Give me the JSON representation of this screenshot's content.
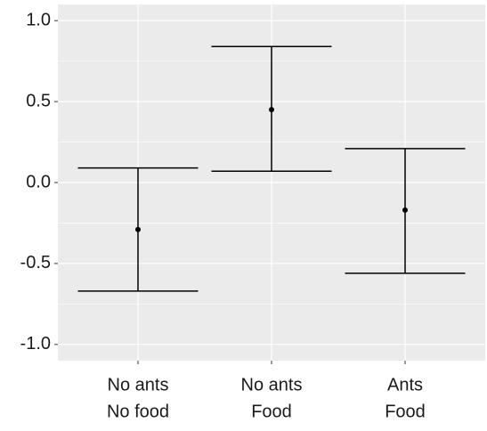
{
  "chart_data": {
    "type": "errorbar",
    "categories": [
      [
        "No ants",
        "No food"
      ],
      [
        "No ants",
        "Food"
      ],
      [
        "Ants",
        "Food"
      ]
    ],
    "values": [
      -0.29,
      0.45,
      -0.17
    ],
    "lower": [
      -0.67,
      0.07,
      -0.56
    ],
    "upper": [
      0.09,
      0.84,
      0.21
    ],
    "color": "#000000",
    "ylim": [
      -1.1,
      1.1
    ],
    "yticks": [
      {
        "value": -1,
        "label": "-1.0"
      },
      -0.5,
      {
        "value": 0,
        "label": "0.0"
      },
      0.5,
      {
        "value": 1,
        "label": "1.0"
      }
    ],
    "grid": true
  }
}
